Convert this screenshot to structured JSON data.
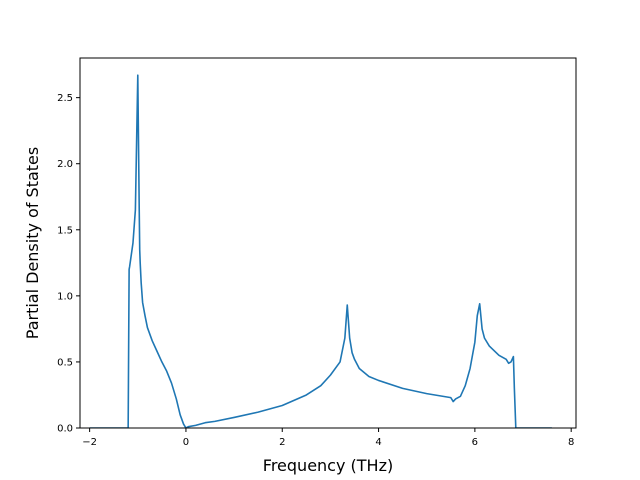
{
  "chart_data": {
    "type": "line",
    "title": "",
    "xlabel": "Frequency (THz)",
    "ylabel": "Partial Density of States",
    "xlim": [
      -2.2,
      8.1
    ],
    "ylim": [
      0.0,
      2.8
    ],
    "grid": false,
    "legend": "none",
    "xticks": [
      -2,
      0,
      2,
      4,
      6,
      8
    ],
    "xtick_labels": [
      "−2",
      "0",
      "2",
      "4",
      "6",
      "8"
    ],
    "yticks": [
      0.0,
      0.5,
      1.0,
      1.5,
      2.0,
      2.5
    ],
    "ytick_labels": [
      "0.0",
      "0.5",
      "1.0",
      "1.5",
      "2.0",
      "2.5"
    ],
    "series": [
      {
        "color": "#1f77b4",
        "x": [
          -2.0,
          -1.2,
          -1.18,
          -1.17,
          -1.1,
          -1.05,
          -1.0,
          -0.97,
          -0.96,
          -0.95,
          -0.93,
          -0.9,
          -0.85,
          -0.8,
          -0.7,
          -0.6,
          -0.5,
          -0.4,
          -0.3,
          -0.2,
          -0.12,
          -0.05,
          0.0,
          0.05,
          0.2,
          0.4,
          0.6,
          1.0,
          1.5,
          2.0,
          2.5,
          2.8,
          3.0,
          3.2,
          3.3,
          3.35,
          3.4,
          3.45,
          3.5,
          3.6,
          3.7,
          3.8,
          4.0,
          4.5,
          5.0,
          5.5,
          5.55,
          5.6,
          5.7,
          5.8,
          5.9,
          6.0,
          6.05,
          6.1,
          6.15,
          6.2,
          6.3,
          6.5,
          6.65,
          6.7,
          6.75,
          6.8,
          6.82,
          6.85,
          7.0,
          7.6
        ],
        "y": [
          0.0,
          0.0,
          1.2,
          1.22,
          1.4,
          1.65,
          2.67,
          1.65,
          1.35,
          1.25,
          1.1,
          0.95,
          0.85,
          0.76,
          0.66,
          0.58,
          0.5,
          0.43,
          0.34,
          0.22,
          0.1,
          0.03,
          0.0,
          0.01,
          0.02,
          0.04,
          0.05,
          0.08,
          0.12,
          0.17,
          0.25,
          0.32,
          0.4,
          0.5,
          0.68,
          0.93,
          0.68,
          0.57,
          0.52,
          0.45,
          0.42,
          0.39,
          0.36,
          0.3,
          0.26,
          0.23,
          0.2,
          0.22,
          0.24,
          0.32,
          0.45,
          0.65,
          0.85,
          0.94,
          0.75,
          0.68,
          0.62,
          0.55,
          0.52,
          0.49,
          0.5,
          0.54,
          0.3,
          0.0,
          0.0,
          0.0
        ]
      }
    ]
  }
}
